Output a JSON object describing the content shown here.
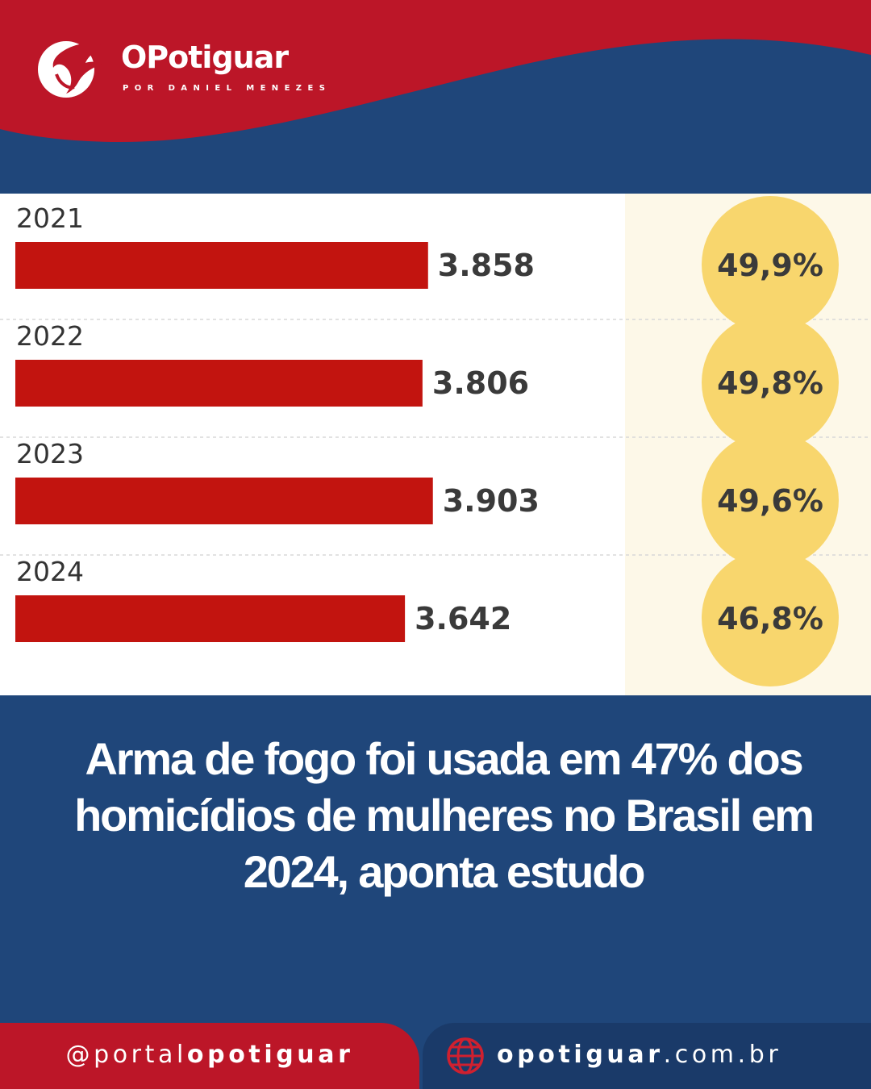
{
  "brand": {
    "name": "OPotiguar",
    "tagline": "POR DANIEL MENEZES"
  },
  "colors": {
    "red": "#bc1628",
    "navy": "#1f467a",
    "bar": "#c2140f",
    "circle": "#f8d66d",
    "panel_highlight": "#fdf8e8"
  },
  "chart_data": {
    "type": "bar",
    "orientation": "horizontal",
    "categories": [
      "2021",
      "2022",
      "2023",
      "2024"
    ],
    "values": [
      3858,
      3806,
      3903,
      3642
    ],
    "value_labels": [
      "3.858",
      "3.806",
      "3.903",
      "3.642"
    ],
    "percentages": [
      49.9,
      49.8,
      49.6,
      46.8
    ],
    "percentage_labels": [
      "49,9%",
      "49,8%",
      "49,6%",
      "46,8%"
    ],
    "xlim": [
      0,
      4900
    ]
  },
  "headline": "Arma de fogo foi usada em 47% dos homicídios de mulheres no Brasil em 2024, aponta estudo",
  "footer": {
    "handle_prefix": "@portal",
    "handle_bold": "opotiguar",
    "site_bold": "opotiguar",
    "site_suffix": ".com.br"
  }
}
